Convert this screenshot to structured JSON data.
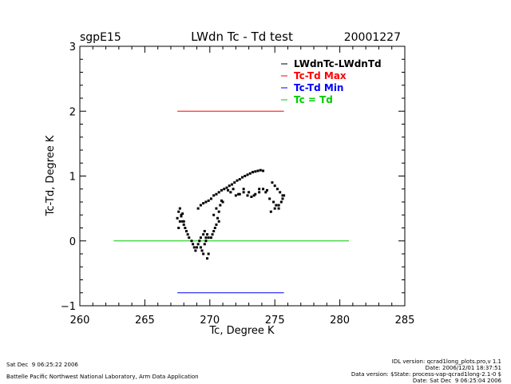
{
  "header": {
    "site": "sgpE15",
    "date": "20001227"
  },
  "chart_data": {
    "type": "scatter",
    "title": "LWdn Tc - Td test",
    "xlabel": "Tc, Degree K",
    "ylabel": "Tc-Td, Degree K",
    "xlim": [
      260,
      285
    ],
    "ylim": [
      -1,
      3
    ],
    "xticks": [
      "260",
      "265",
      "270",
      "275",
      "280",
      "285"
    ],
    "yticks": [
      "-1",
      "0",
      "1",
      "2",
      "3"
    ],
    "grid": false,
    "legend_position": "top-right",
    "legend": [
      {
        "label": "LWdnTc-LWdnTd",
        "color": "#000000"
      },
      {
        "label": "Tc-Td Max",
        "color": "#ff0000"
      },
      {
        "label": "Tc-Td Min",
        "color": "#0000ff"
      },
      {
        "label": "Tc = Td",
        "color": "#00cc00"
      }
    ],
    "lines": [
      {
        "name": "Tc-Td Max",
        "color": "#ff0000",
        "x": [
          267.5,
          275.7
        ],
        "y": [
          2.0,
          2.0
        ]
      },
      {
        "name": "Tc-Td Min",
        "color": "#0000ff",
        "x": [
          267.5,
          275.7
        ],
        "y": [
          -0.8,
          -0.8
        ]
      },
      {
        "name": "Tc = Td",
        "color": "#00cc00",
        "x": [
          262.6,
          280.7
        ],
        "y": [
          0,
          0
        ]
      }
    ],
    "series": [
      {
        "name": "LWdnTc-LWdnTd",
        "color": "#000000",
        "x": [
          267.5,
          267.6,
          267.7,
          267.8,
          267.9,
          268.0,
          267.6,
          267.7,
          267.8,
          267.9,
          268.0,
          268.1,
          268.2,
          268.3,
          268.4,
          268.6,
          268.7,
          268.8,
          268.9,
          269.0,
          269.1,
          269.2,
          269.3,
          269.4,
          269.5,
          269.6,
          269.7,
          269.8,
          269.9,
          269.3,
          269.5,
          269.7,
          269.9,
          270.1,
          270.2,
          270.3,
          270.4,
          270.5,
          270.6,
          270.7,
          270.8,
          270.9,
          271.0,
          270.3,
          270.5,
          270.7,
          269.1,
          269.3,
          269.5,
          269.7,
          269.9,
          270.1,
          270.3,
          270.5,
          270.7,
          270.9,
          271.1,
          271.3,
          271.5,
          271.7,
          271.9,
          272.1,
          272.3,
          272.5,
          272.7,
          272.9,
          273.1,
          273.3,
          273.5,
          273.7,
          273.9,
          274.1,
          272.0,
          272.3,
          272.6,
          272.9,
          273.2,
          273.5,
          273.8,
          274.1,
          274.4,
          271.4,
          271.6,
          271.8,
          272.2,
          272.6,
          273.0,
          273.4,
          273.8,
          274.3,
          274.6,
          274.8,
          275.0,
          275.2,
          275.4,
          275.6,
          274.9,
          275.1,
          275.3,
          275.5,
          275.6,
          275.7,
          274.7,
          275.0,
          275.3,
          269.6,
          269.8
        ],
        "y": [
          0.35,
          0.45,
          0.5,
          0.4,
          0.3,
          0.25,
          0.2,
          0.3,
          0.38,
          0.42,
          0.3,
          0.2,
          0.15,
          0.1,
          0.05,
          0.0,
          -0.05,
          -0.1,
          -0.15,
          -0.1,
          -0.05,
          0.0,
          -0.1,
          -0.15,
          -0.2,
          -0.05,
          0.05,
          -0.27,
          -0.2,
          0.05,
          0.1,
          0.0,
          0.05,
          0.05,
          0.1,
          0.15,
          0.2,
          0.25,
          0.35,
          0.45,
          0.55,
          0.62,
          0.6,
          0.4,
          0.5,
          0.3,
          0.5,
          0.55,
          0.58,
          0.6,
          0.62,
          0.65,
          0.7,
          0.72,
          0.75,
          0.78,
          0.8,
          0.82,
          0.85,
          0.87,
          0.9,
          0.93,
          0.95,
          0.98,
          1.0,
          1.02,
          1.04,
          1.06,
          1.07,
          1.08,
          1.09,
          1.08,
          0.7,
          0.72,
          0.75,
          0.7,
          0.68,
          0.72,
          0.75,
          0.8,
          0.78,
          0.78,
          0.75,
          0.8,
          0.72,
          0.8,
          0.75,
          0.7,
          0.8,
          0.75,
          0.65,
          0.9,
          0.85,
          0.8,
          0.75,
          0.7,
          0.6,
          0.55,
          0.5,
          0.6,
          0.65,
          0.7,
          0.45,
          0.5,
          0.55,
          0.15,
          0.1
        ]
      }
    ]
  },
  "footer": {
    "left_date": "Sat Dec  9 06:25:22 2006",
    "org": "Battelle Pacific Northwest National Laboratory, Arm Data Application",
    "idl_version": "IDL version: qcrad1long_plots.pro,v 1.1",
    "idl_date": "Date: 2006/12/01 18:37:51",
    "data_version": "Data version: $State: process-vap-qcrad1long-2.1-0 $",
    "data_date": "Date: Sat Dec  9 06:25:04 2006"
  }
}
